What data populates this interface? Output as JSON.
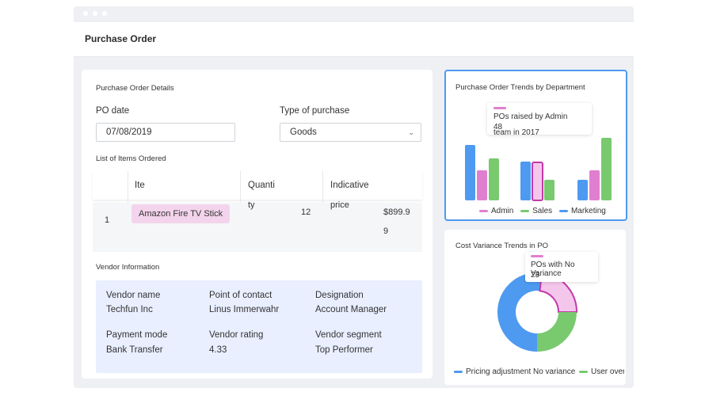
{
  "header": {
    "title": "Purchase Order"
  },
  "details": {
    "section_title": "Purchase Order Details",
    "po_date_label": "PO date",
    "po_date_value": "07/08/2019",
    "type_label": "Type of purchase",
    "type_value": "Goods"
  },
  "items": {
    "section_title": "List of Items Ordered",
    "columns": [
      "Ite",
      "Quanti",
      "Indicative"
    ],
    "overflow_quantity": "ty",
    "overflow_indicative": "price",
    "rows": [
      {
        "num": "1",
        "item": "Amazon Fire TV Stick",
        "quantity": "12",
        "price_line1": "$899.9",
        "price_line2": "9"
      }
    ]
  },
  "vendor": {
    "section_title": "Vendor Information",
    "fields": [
      {
        "label": "Vendor name",
        "value": "Techfun Inc"
      },
      {
        "label": "Point of contact",
        "value": "Linus Immerwahr"
      },
      {
        "label": "Designation",
        "value": "Account Manager"
      },
      {
        "label": "Payment mode",
        "value": "Bank Transfer"
      },
      {
        "label": "Vendor rating",
        "value": "4.33"
      },
      {
        "label": "Vendor segment",
        "value": "Top Performer"
      }
    ]
  },
  "colors": {
    "admin": "#e07fd0",
    "sales": "#79c96f",
    "marketing": "#4e9af1",
    "selected_border": "#4e9af1"
  },
  "chart_data": [
    {
      "type": "bar",
      "title": "Purchase Order Trends by Department",
      "categories": [
        "",
        "",
        ""
      ],
      "series": [
        {
          "name": "Admin",
          "values": [
            38,
            48,
            38
          ]
        },
        {
          "name": "Sales",
          "values": [
            53,
            26,
            79
          ]
        },
        {
          "name": "Marketing",
          "values": [
            70,
            49,
            26
          ]
        }
      ],
      "ylim": [
        0,
        100
      ],
      "grid": false,
      "legend": "bottom",
      "tooltip": {
        "text_line1": "POs raised by Admin",
        "value": "48",
        "text_line2": "team in 2017"
      }
    },
    {
      "type": "pie",
      "title": "Cost Variance Trends in PO",
      "labels": [
        "Pricing adjustment",
        "No variance",
        "User override"
      ],
      "values": [
        52,
        23,
        25
      ],
      "legend": "bottom",
      "tooltip": {
        "text": "POs with No Variance",
        "value": "23"
      }
    }
  ]
}
